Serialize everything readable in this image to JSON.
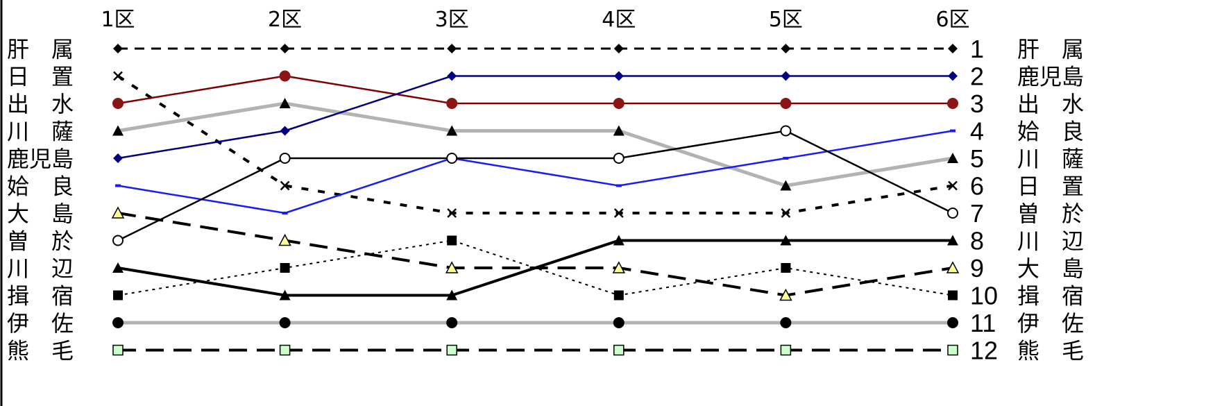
{
  "chart_data": {
    "type": "line",
    "y_axis": "rank",
    "ylim": [
      1,
      12
    ],
    "y_inverted": true,
    "categories": [
      "1区",
      "2区",
      "3区",
      "4区",
      "5区",
      "6区"
    ],
    "left_labels": [
      "肝　属",
      "日　置",
      "出　水",
      "川　薩",
      "鹿児島",
      "姶　良",
      "大　島",
      "曽　於",
      "川　辺",
      "揖　宿",
      "伊　佐",
      "熊　毛"
    ],
    "right_labels": [
      "肝　属",
      "鹿児島",
      "出　水",
      "姶　良",
      "川　薩",
      "日　置",
      "曽　於",
      "川　辺",
      "大　島",
      "揖　宿",
      "伊　佐",
      "熊　毛"
    ],
    "rank_labels": [
      "1",
      "2",
      "3",
      "4",
      "5",
      "6",
      "7",
      "8",
      "9",
      "10",
      "11",
      "12"
    ],
    "series": [
      {
        "name": "肝属",
        "values": [
          1,
          1,
          1,
          1,
          1,
          1
        ],
        "color": "#000000",
        "line": "dashed",
        "marker": "diamond"
      },
      {
        "name": "日置",
        "values": [
          2,
          6,
          7,
          7,
          7,
          6
        ],
        "color": "#000000",
        "line": "dotted-heavy",
        "marker": "x"
      },
      {
        "name": "出水",
        "values": [
          3,
          2,
          3,
          3,
          3,
          3
        ],
        "color": "#800000",
        "line": "solid",
        "marker": "circle-filled"
      },
      {
        "name": "川薩",
        "values": [
          4,
          3,
          4,
          4,
          6,
          5
        ],
        "color": "#b3b3b3",
        "line": "solid-thick",
        "marker": "triangle"
      },
      {
        "name": "鹿児島",
        "values": [
          5,
          4,
          2,
          2,
          2,
          2
        ],
        "color": "#000080",
        "line": "solid",
        "marker": "diamond-navy"
      },
      {
        "name": "姶良",
        "values": [
          6,
          7,
          5,
          6,
          5,
          4
        ],
        "color": "#1a1aff",
        "line": "solid",
        "marker": "dash"
      },
      {
        "name": "大島",
        "values": [
          7,
          8,
          9,
          9,
          10,
          9
        ],
        "color": "#000000",
        "line": "dashed-heavy",
        "marker": "triangle-yellow"
      },
      {
        "name": "曽於",
        "values": [
          8,
          5,
          5,
          5,
          4,
          7
        ],
        "color": "#000000",
        "line": "solid",
        "marker": "circle-open"
      },
      {
        "name": "川辺",
        "values": [
          9,
          10,
          10,
          8,
          8,
          8
        ],
        "color": "#000000",
        "line": "solid-heavy",
        "marker": "triangle"
      },
      {
        "name": "揖宿",
        "values": [
          10,
          9,
          8,
          10,
          9,
          10
        ],
        "color": "#000000",
        "line": "dotted",
        "marker": "square"
      },
      {
        "name": "伊佐",
        "values": [
          11,
          11,
          11,
          11,
          11,
          11
        ],
        "color": "#b3b3b3",
        "line": "solid-thick",
        "marker": "circle-filled-black"
      },
      {
        "name": "熊毛",
        "values": [
          12,
          12,
          12,
          12,
          12,
          12
        ],
        "color": "#000000",
        "line": "dashed-heavy",
        "marker": "square-green"
      }
    ]
  }
}
